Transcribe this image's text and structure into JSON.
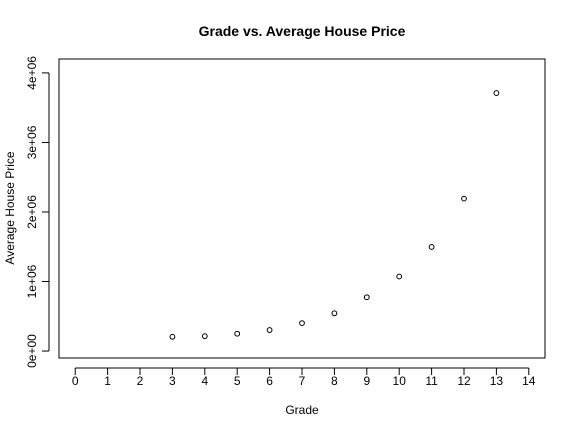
{
  "chart_data": {
    "type": "scatter",
    "title": "Grade vs. Average House Price",
    "xlabel": "Grade",
    "ylabel": "Average House Price",
    "xlim": [
      -0.5,
      14.5
    ],
    "ylim": [
      -100000,
      4200000
    ],
    "x_ticks": [
      0,
      1,
      2,
      3,
      4,
      5,
      6,
      7,
      8,
      9,
      10,
      11,
      12,
      13,
      14
    ],
    "x_tick_labels": [
      "0",
      "1",
      "2",
      "3",
      "4",
      "5",
      "6",
      "7",
      "8",
      "9",
      "10",
      "11",
      "12",
      "13",
      "14"
    ],
    "y_ticks": [
      0,
      1000000,
      2000000,
      3000000,
      4000000
    ],
    "y_tick_labels": [
      "0e+00",
      "1e+06",
      "2e+06",
      "3e+06",
      "4e+06"
    ],
    "grid": false,
    "legend": "none",
    "marker": "open-circle",
    "points": [
      {
        "x": 3,
        "y": 205000
      },
      {
        "x": 4,
        "y": 214000
      },
      {
        "x": 5,
        "y": 249000
      },
      {
        "x": 6,
        "y": 302000
      },
      {
        "x": 7,
        "y": 402000
      },
      {
        "x": 8,
        "y": 543000
      },
      {
        "x": 9,
        "y": 774000
      },
      {
        "x": 10,
        "y": 1072000
      },
      {
        "x": 11,
        "y": 1497000
      },
      {
        "x": 12,
        "y": 2192000
      },
      {
        "x": 13,
        "y": 3710000
      }
    ]
  }
}
